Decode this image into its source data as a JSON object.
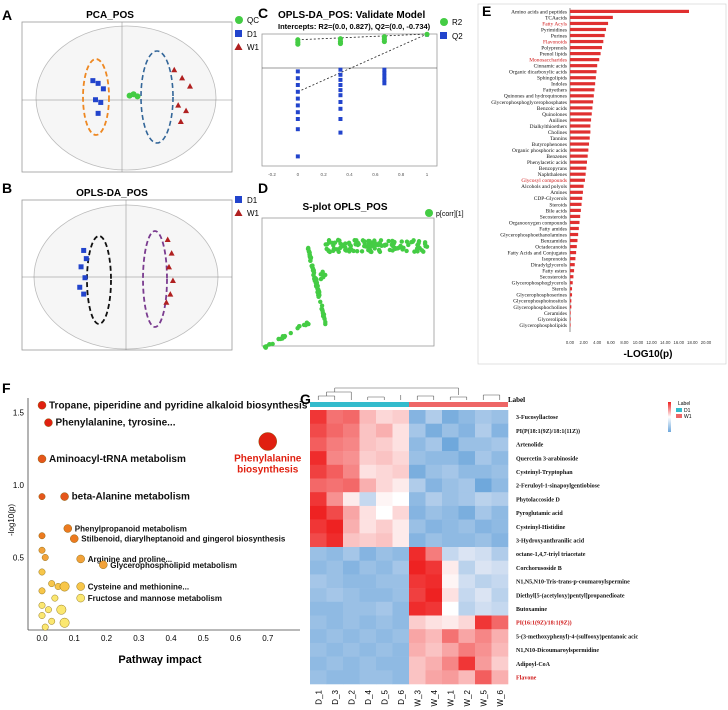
{
  "panels": {
    "A": {
      "letter": "A",
      "title": "PCA_POS",
      "legend": [
        "QC",
        "D1",
        "W1"
      ]
    },
    "B": {
      "letter": "B",
      "title": "OPLS-DA_POS",
      "legend": [
        "D1",
        "W1"
      ]
    },
    "C": {
      "letter": "C",
      "title": "OPLS-DA_POS: Validate Model",
      "subtitle": "Intercepts: R2=(0.0, 0.827), Q2=(0.0, -0.734)",
      "legend": [
        "R2",
        "Q2"
      ]
    },
    "D": {
      "letter": "D",
      "title": "S-plot OPLS_POS",
      "legend": [
        "p[corr][1]"
      ]
    },
    "E": {
      "letter": "E",
      "xlabel": "-LOG10(p)"
    },
    "F": {
      "letter": "F",
      "xlabel": "Pathway impact",
      "ylabel": "-log10(p)"
    },
    "G": {
      "letter": "G",
      "label_title": "Label",
      "legend": [
        "Label",
        "D1",
        "W1"
      ]
    }
  },
  "colors": {
    "qc": "#44cc44",
    "d1": "#2244cc",
    "w1": "#b02020",
    "bar": "#e03030",
    "heat_low": "#6fa8dc",
    "heat_high": "#ee2222"
  },
  "chart_data": [
    {
      "type": "scatter",
      "panel": "A",
      "title": "PCA_POS",
      "series": [
        {
          "name": "QC",
          "x": [
            0.2,
            0.5,
            0.8
          ],
          "y": [
            0.1,
            0.2,
            0.05
          ]
        },
        {
          "name": "D1",
          "x": [
            -2.6,
            -2.2,
            -1.8,
            -2.4,
            -2.0,
            -2.2
          ],
          "y": [
            1.2,
            1.0,
            0.6,
            -0.2,
            -0.4,
            -1.2
          ]
        },
        {
          "name": "W1",
          "x": [
            3.6,
            4.2,
            4.8,
            3.9,
            4.5,
            4.1
          ],
          "y": [
            2.0,
            1.4,
            0.8,
            -0.6,
            -1.0,
            -1.8
          ]
        }
      ]
    },
    {
      "type": "scatter",
      "panel": "B",
      "title": "OPLS-DA_POS",
      "series": [
        {
          "name": "D1",
          "x": [
            -3.3,
            -3.1,
            -3.5,
            -3.2,
            -3.6,
            -3.3
          ],
          "y": [
            1.8,
            1.2,
            0.6,
            -0.2,
            -0.9,
            -1.4
          ]
        },
        {
          "name": "W1",
          "x": [
            3.1,
            3.4,
            3.2,
            3.5,
            3.3,
            3.0
          ],
          "y": [
            2.6,
            1.6,
            0.6,
            -0.4,
            -1.4,
            -2.0
          ]
        }
      ]
    },
    {
      "type": "scatter",
      "panel": "C",
      "title": "OPLS-DA_POS: Validate Model",
      "x_ticks": [
        "-0.2",
        "0",
        "0.2",
        "0.4",
        "0.6",
        "0.8",
        "1"
      ],
      "series": [
        {
          "name": "R2",
          "x": [
            0.0,
            0.33,
            0.67,
            1.0
          ],
          "y": [
            0.83,
            0.86,
            0.92,
            0.99
          ]
        },
        {
          "name": "Q2",
          "x": [
            0.0,
            0.33,
            0.67,
            1.0
          ],
          "y": [
            -0.7,
            -0.4,
            -0.1,
            0.98
          ]
        }
      ]
    },
    {
      "type": "scatter",
      "panel": "D",
      "title": "S-plot OPLS_POS",
      "series": [
        {
          "name": "p[corr][1]"
        }
      ]
    },
    {
      "type": "bar",
      "panel": "E",
      "orientation": "horizontal",
      "xlabel": "-LOG10(p)",
      "x_ticks": [
        "0.00",
        "2.00",
        "4.00",
        "6.00",
        "8.00",
        "10.00",
        "12.00",
        "14.00",
        "16.00",
        "18.00",
        "20.00"
      ],
      "xlim": [
        0,
        20
      ],
      "categories": [
        "Amino acids and peptides",
        "TCAacids",
        "Fatty Acyls",
        "Pyrimidines",
        "Purines",
        "Flavonoids",
        "Polyprenols",
        "Prenol lipids",
        "Monosaccharides",
        "Cinnamic acids",
        "Organic dicarboxylic acids",
        "Sphingolipids",
        "Indoles",
        "Fattyethers",
        "Quinones and hydroquinones",
        "Glycerophosphoglycerophosphates",
        "Benzoic acids",
        "Quinolones",
        "Anilines",
        "Dialkylthioethers",
        "Cholines",
        "Tannins",
        "Butyrophenones",
        "Organic phosphoric acids",
        "Benzenes",
        "Phenylacetic acids",
        "Benzopyrans",
        "Naphthalenes",
        "Glycosyl compounds",
        "Alcohols and polyols",
        "Amines",
        "CDP-Glycerols",
        "Steroids",
        "Bile acids",
        "Secosteroids",
        "Organooxygen compounds",
        "Fatty amides",
        "Glycerophosphoethanolamines",
        "Benzamides",
        "Octadecanoids",
        "Fatty Acids and Conjugates",
        "Isoprenoids",
        "Diradylglycerols",
        "Fatty esters",
        "Secosteroids",
        "Glycerophosphoglycerols",
        "Sterols",
        "Glycerophosphoserines",
        "Glycerophosphoinositols",
        "Glycerophosphocholines",
        "Ceramides",
        "Glycerolipids",
        "Glycerophospholipids"
      ],
      "highlighted": [
        "Fatty Acyls",
        "Flavonoids",
        "Monosaccharides",
        "Glycosyl compounds"
      ],
      "values": [
        17.5,
        6.3,
        5.6,
        5.3,
        5.1,
        4.9,
        4.7,
        4.5,
        4.3,
        4.0,
        3.9,
        3.8,
        3.7,
        3.6,
        3.5,
        3.4,
        3.3,
        3.2,
        3.1,
        3.0,
        3.0,
        2.9,
        2.8,
        2.7,
        2.6,
        2.5,
        2.4,
        2.3,
        2.2,
        2.0,
        1.9,
        1.8,
        1.7,
        1.6,
        1.5,
        1.4,
        1.3,
        1.2,
        1.1,
        1.0,
        0.9,
        0.8,
        0.7,
        0.6,
        0.5,
        0.4,
        0.3,
        0.3,
        0.2,
        0.2,
        0.1,
        0.1,
        0.05
      ]
    },
    {
      "type": "scatter",
      "panel": "F",
      "xlabel": "Pathway impact",
      "ylabel": "-log10(p)",
      "xlim": [
        0,
        0.8
      ],
      "ylim": [
        0,
        1.6
      ],
      "x_ticks": [
        "0.0",
        "0.1",
        "0.2",
        "0.3",
        "0.4",
        "0.5",
        "0.6",
        "0.7"
      ],
      "y_ticks": [
        "0.5",
        "1.0",
        "1.5"
      ],
      "points": [
        {
          "x": 0.0,
          "y": 1.55,
          "label": "Tropane, piperidine and pyridine alkaloid biosynthesis"
        },
        {
          "x": 0.02,
          "y": 1.43,
          "label": "Phenylalanine, tyrosine..."
        },
        {
          "x": 0.0,
          "y": 1.18,
          "label": "Aminoacyl-tRNA metabolism"
        },
        {
          "x": 0.7,
          "y": 1.3,
          "label": "Phenylalanine biosynthesis"
        },
        {
          "x": 0.07,
          "y": 0.92,
          "label": "beta-Alanine metabolism"
        },
        {
          "x": 0.0,
          "y": 0.92,
          "label": ""
        },
        {
          "x": 0.08,
          "y": 0.7,
          "label": "Phenylpropanoid metabolism"
        },
        {
          "x": 0.1,
          "y": 0.63,
          "label": "Stilbenoid, diarylheptanoid and gingerol biosynthesis"
        },
        {
          "x": 0.12,
          "y": 0.49,
          "label": "Arginine and proline..."
        },
        {
          "x": 0.19,
          "y": 0.45,
          "label": "Glycerophospholipid metabolism"
        },
        {
          "x": 0.12,
          "y": 0.3,
          "label": "Cysteine and methionine..."
        },
        {
          "x": 0.12,
          "y": 0.22,
          "label": "Fructose and mannose metabolism"
        },
        {
          "x": 0.0,
          "y": 0.65,
          "label": ""
        },
        {
          "x": 0.0,
          "y": 0.55,
          "label": ""
        },
        {
          "x": 0.01,
          "y": 0.5,
          "label": ""
        },
        {
          "x": 0.0,
          "y": 0.4,
          "label": ""
        },
        {
          "x": 0.03,
          "y": 0.32,
          "label": ""
        },
        {
          "x": 0.05,
          "y": 0.3,
          "label": ""
        },
        {
          "x": 0.07,
          "y": 0.3,
          "label": ""
        },
        {
          "x": 0.0,
          "y": 0.27,
          "label": ""
        },
        {
          "x": 0.04,
          "y": 0.22,
          "label": ""
        },
        {
          "x": 0.0,
          "y": 0.17,
          "label": ""
        },
        {
          "x": 0.02,
          "y": 0.14,
          "label": ""
        },
        {
          "x": 0.06,
          "y": 0.14,
          "label": ""
        },
        {
          "x": 0.0,
          "y": 0.1,
          "label": ""
        },
        {
          "x": 0.03,
          "y": 0.06,
          "label": ""
        },
        {
          "x": 0.07,
          "y": 0.05,
          "label": ""
        },
        {
          "x": 0.01,
          "y": 0.02,
          "label": ""
        }
      ]
    },
    {
      "type": "heatmap",
      "panel": "G",
      "columns": [
        "D_1",
        "D_3",
        "D_2",
        "D_4",
        "D_5",
        "D_6",
        "W_3",
        "W_4",
        "W_1",
        "W_2",
        "W_5",
        "W_6"
      ],
      "rows": [
        "3-Fucosyllactose",
        "PI(P(18:1(9Z)/18:1(11Z))",
        "Artenolide",
        "Quercetin 3-arabinoside",
        "Cysteinyl-Tryptophan",
        "2-Feruloyl-1-sinapoylgentiobiose",
        "Phytolaccoside D",
        "Pyroglutamic acid",
        "Cysteinyl-Histidine",
        "3-Hydroxyanthranilic acid",
        "octane-1,4,7-triyl triacetate",
        "Corchorusoside B",
        "N1,N5,N10-Tris-trans-p-coumaroylspermine",
        "Diethyl[5-(acetyloxy)pentyl]propanedioate",
        "Butoxamine",
        "PI(16:1(9Z)/18:1(9Z))",
        "5-(3-methoxyphenyl)-4-(sulfooxy)pentanoic acic",
        "N1,N10-Dicoumaroylspermidine",
        "Adipoyl-CoA",
        "Flavone"
      ],
      "highlighted_rows": [
        "PI(16:1(9Z)/18:1(9Z))",
        "Flavone"
      ],
      "values": [
        [
          2.0,
          1.4,
          1.5,
          0.7,
          0.4,
          0.5,
          -1.0,
          -0.6,
          -1.1,
          -0.9,
          -0.7,
          -0.8
        ],
        [
          1.8,
          1.5,
          1.3,
          0.6,
          0.8,
          0.3,
          -0.7,
          -1.1,
          -0.8,
          -1.0,
          -0.6,
          -1.0
        ],
        [
          1.6,
          1.3,
          1.2,
          0.6,
          0.5,
          0.3,
          -0.9,
          -0.7,
          -1.2,
          -0.8,
          -0.8,
          -0.7
        ],
        [
          2.1,
          1.2,
          1.1,
          0.5,
          0.6,
          0.4,
          -0.8,
          -0.9,
          -0.9,
          -1.1,
          -0.7,
          -0.9
        ],
        [
          1.9,
          1.6,
          1.2,
          0.3,
          0.4,
          0.5,
          -1.1,
          -0.8,
          -0.7,
          -0.9,
          -0.9,
          -0.8
        ],
        [
          1.5,
          1.4,
          1.5,
          0.8,
          0.4,
          0.2,
          -0.6,
          -1.0,
          -0.8,
          -0.7,
          -1.2,
          -0.9
        ],
        [
          2.0,
          1.1,
          0.2,
          -0.4,
          0.1,
          0.0,
          -0.9,
          -0.6,
          -0.8,
          -0.7,
          -0.5,
          -0.6
        ],
        [
          2.2,
          1.8,
          0.9,
          0.3,
          0.0,
          0.4,
          -1.0,
          -0.8,
          -0.9,
          -1.1,
          -0.7,
          -0.9
        ],
        [
          2.0,
          2.3,
          0.8,
          0.3,
          0.5,
          0.2,
          -0.8,
          -1.0,
          -0.9,
          -0.8,
          -1.0,
          -0.9
        ],
        [
          1.8,
          2.1,
          0.6,
          0.5,
          0.6,
          0.2,
          -1.0,
          -0.8,
          -0.9,
          -0.9,
          -0.8,
          -1.0
        ],
        [
          -0.8,
          -0.9,
          -0.7,
          -1.0,
          -0.8,
          -0.9,
          2.1,
          1.3,
          -0.4,
          -0.2,
          -0.3,
          -0.6
        ],
        [
          -0.9,
          -0.8,
          -1.0,
          -0.8,
          -0.9,
          -0.7,
          2.2,
          2.0,
          0.2,
          -0.5,
          -0.2,
          -0.3
        ],
        [
          -0.7,
          -0.8,
          -0.9,
          -0.9,
          -0.8,
          -0.8,
          2.0,
          2.1,
          0.1,
          -0.3,
          -0.5,
          -0.4
        ],
        [
          -0.8,
          -0.7,
          -0.8,
          -0.9,
          -0.9,
          -0.8,
          1.9,
          2.2,
          0.3,
          -0.4,
          -0.2,
          -0.5
        ],
        [
          -0.9,
          -0.9,
          -0.8,
          -0.8,
          -0.7,
          -0.9,
          2.1,
          2.0,
          0.0,
          -0.5,
          -0.3,
          -0.4
        ],
        [
          -0.8,
          -0.9,
          -0.8,
          -0.9,
          -0.8,
          -0.9,
          0.5,
          0.3,
          0.2,
          0.4,
          2.0,
          1.5
        ],
        [
          -0.9,
          -0.8,
          -0.9,
          -0.8,
          -0.9,
          -0.8,
          0.9,
          0.7,
          1.4,
          0.9,
          1.2,
          0.8
        ],
        [
          -0.8,
          -0.9,
          -0.8,
          -0.9,
          -0.8,
          -0.9,
          0.8,
          0.6,
          0.9,
          1.3,
          1.1,
          0.7
        ],
        [
          -0.9,
          -0.8,
          -0.9,
          -0.8,
          -0.9,
          -0.9,
          0.6,
          0.8,
          1.2,
          2.0,
          1.0,
          0.5
        ],
        [
          -0.8,
          -0.9,
          -0.9,
          -0.8,
          -0.8,
          -0.9,
          0.6,
          0.9,
          1.0,
          0.7,
          1.6,
          0.8
        ]
      ]
    }
  ]
}
